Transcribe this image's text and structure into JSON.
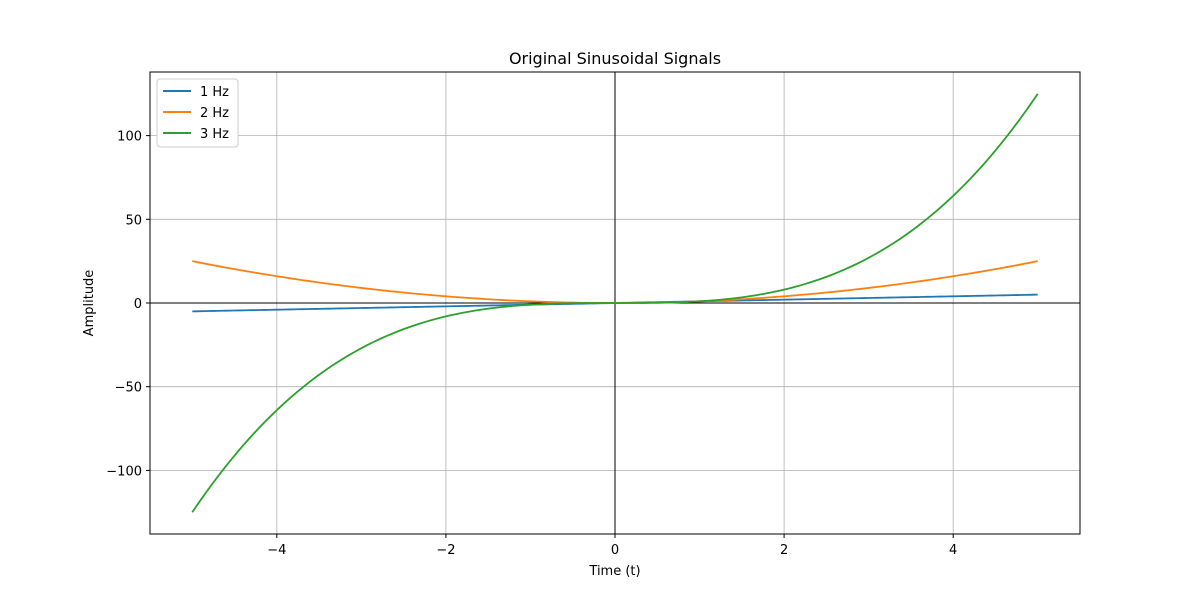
{
  "chart_data": {
    "type": "line",
    "title": "Original Sinusoidal Signals",
    "xlabel": "Time (t)",
    "ylabel": "Amplitude",
    "xlim": [
      -5.5,
      5.5
    ],
    "ylim": [
      -138,
      138
    ],
    "x_ticks": [
      -4,
      -2,
      0,
      2,
      4
    ],
    "x_tick_labels": [
      "−4",
      "−2",
      "0",
      "2",
      "4"
    ],
    "y_ticks": [
      -100,
      -50,
      0,
      50,
      100
    ],
    "y_tick_labels": [
      "−100",
      "−50",
      "0",
      "50",
      "100"
    ],
    "grid": true,
    "zero_lines": true,
    "legend_position": "top-left",
    "x_range": [
      -5,
      5
    ],
    "series": [
      {
        "name": "1 Hz",
        "color": "#1f77b4",
        "exponent": 1,
        "x": [
          -5,
          -4,
          -3,
          -2,
          -1,
          0,
          1,
          2,
          3,
          4,
          5
        ],
        "y": [
          -5,
          -4,
          -3,
          -2,
          -1,
          0,
          1,
          2,
          3,
          4,
          5
        ]
      },
      {
        "name": "2 Hz",
        "color": "#ff7f0e",
        "exponent": 2,
        "x": [
          -5,
          -4,
          -3,
          -2,
          -1,
          0,
          1,
          2,
          3,
          4,
          5
        ],
        "y": [
          25,
          16,
          9,
          4,
          1,
          0,
          1,
          4,
          9,
          16,
          25
        ]
      },
      {
        "name": "3 Hz",
        "color": "#2ca02c",
        "exponent": 3,
        "x": [
          -5,
          -4,
          -3,
          -2,
          -1,
          0,
          1,
          2,
          3,
          4,
          5
        ],
        "y": [
          -125,
          -64,
          -27,
          -8,
          -1,
          0,
          1,
          8,
          27,
          64,
          125
        ]
      }
    ]
  }
}
